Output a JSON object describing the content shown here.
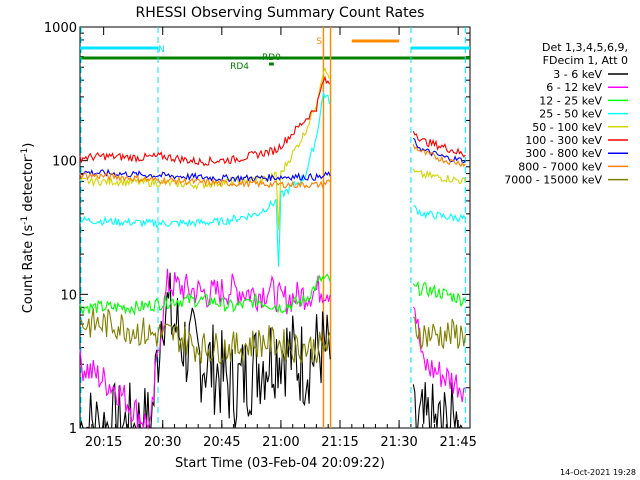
{
  "chart_data": {
    "type": "line",
    "title": "RHESSI Observing Summary Count Rates",
    "xlabel": "Start Time (03-Feb-04 20:09:22)",
    "ylabel": "Count Rate (s⁻¹ detector⁻¹)",
    "ylabel_parts": {
      "a": "Count Rate (s",
      "b": "-1",
      "c": " detector",
      "d": "-1",
      "e": ")"
    },
    "yscale": "log",
    "ylim": [
      1,
      1000
    ],
    "xlim_minutes": [
      20.15,
      21.8
    ],
    "x_ticks": [
      "20:15",
      "20:30",
      "20:45",
      "21:00",
      "21:15",
      "21:30",
      "21:45"
    ],
    "x_tick_minutes": [
      20.25,
      20.5,
      20.75,
      21.0,
      21.25,
      21.5,
      21.75
    ],
    "y_ticks": [
      "1",
      "10",
      "100",
      "1000"
    ],
    "y_tick_values": [
      1,
      10,
      100,
      1000
    ],
    "timestamp": "14-Oct-2021 19:28",
    "legend_header": [
      "Det 1,3,4,5,6,9,",
      "FDecim 1, Att 0"
    ],
    "flags": [
      {
        "label": "N",
        "color": "#00e5ff",
        "segments": [
          [
            20.15,
            20.48
          ],
          [
            21.55,
            21.8
          ]
        ]
      },
      {
        "label": "S",
        "color": "#ff8c00",
        "segments": [
          [
            21.3,
            21.5
          ]
        ]
      },
      {
        "label": "RD0",
        "color": "#008000",
        "segments": [
          [
            20.15,
            21.8
          ]
        ]
      },
      {
        "label": "RD4",
        "color": "#008000",
        "segments": [
          [
            20.95,
            20.97
          ]
        ]
      }
    ],
    "vlines_cyan_dashed": [
      20.48,
      21.55,
      21.78
    ],
    "vlines_orange": [
      21.18,
      21.21
    ],
    "gap": [
      21.21,
      21.56
    ],
    "series": [
      {
        "name": "3 - 6 keV",
        "color": "#000000",
        "points": [
          [
            20.15,
            1
          ],
          [
            20.45,
            1
          ],
          [
            20.5,
            9
          ],
          [
            20.6,
            4
          ],
          [
            20.7,
            3
          ],
          [
            20.8,
            2
          ],
          [
            20.9,
            3
          ],
          [
            21.0,
            4
          ],
          [
            21.1,
            3
          ],
          [
            21.17,
            4
          ],
          [
            21.56,
            1
          ],
          [
            21.78,
            1
          ]
        ]
      },
      {
        "name": "6 - 12 keV",
        "color": "#ff00ff",
        "points": [
          [
            20.15,
            3
          ],
          [
            20.3,
            2
          ],
          [
            20.45,
            1
          ],
          [
            20.48,
            4
          ],
          [
            20.52,
            12
          ],
          [
            20.6,
            11
          ],
          [
            20.7,
            10
          ],
          [
            20.8,
            11
          ],
          [
            20.9,
            10
          ],
          [
            20.95,
            11
          ],
          [
            21.0,
            9
          ],
          [
            21.1,
            10
          ],
          [
            21.17,
            11
          ],
          [
            21.56,
            10
          ],
          [
            21.6,
            3
          ],
          [
            21.78,
            2
          ]
        ]
      },
      {
        "name": "12 - 25 keV",
        "color": "#00ff00",
        "points": [
          [
            20.15,
            8
          ],
          [
            20.4,
            8
          ],
          [
            20.55,
            9
          ],
          [
            20.7,
            9
          ],
          [
            20.8,
            8
          ],
          [
            20.9,
            9
          ],
          [
            21.0,
            8
          ],
          [
            21.1,
            9
          ],
          [
            21.17,
            13
          ],
          [
            21.56,
            11
          ],
          [
            21.6,
            11
          ],
          [
            21.7,
            10
          ],
          [
            21.78,
            9
          ]
        ]
      },
      {
        "name": "25 - 50 keV",
        "color": "#00ffff",
        "points": [
          [
            20.15,
            36
          ],
          [
            20.3,
            35
          ],
          [
            20.45,
            34
          ],
          [
            20.6,
            34
          ],
          [
            20.75,
            35
          ],
          [
            20.9,
            40
          ],
          [
            20.98,
            50
          ],
          [
            20.99,
            15
          ],
          [
            21.0,
            55
          ],
          [
            21.1,
            75
          ],
          [
            21.15,
            150
          ],
          [
            21.18,
            320
          ],
          [
            21.56,
            45
          ],
          [
            21.6,
            40
          ],
          [
            21.7,
            38
          ],
          [
            21.78,
            37
          ]
        ]
      },
      {
        "name": "50 - 100 keV",
        "color": "#d4d400",
        "points": [
          [
            20.15,
            70
          ],
          [
            20.3,
            70
          ],
          [
            20.5,
            68
          ],
          [
            20.65,
            66
          ],
          [
            20.8,
            70
          ],
          [
            20.95,
            74
          ],
          [
            20.98,
            78
          ],
          [
            20.99,
            30
          ],
          [
            21.0,
            80
          ],
          [
            21.1,
            160
          ],
          [
            21.15,
            270
          ],
          [
            21.18,
            480
          ],
          [
            21.56,
            82
          ],
          [
            21.6,
            78
          ],
          [
            21.7,
            74
          ],
          [
            21.78,
            70
          ]
        ]
      },
      {
        "name": "100 - 300 keV",
        "color": "#ff0000",
        "points": [
          [
            20.15,
            105
          ],
          [
            20.25,
            108
          ],
          [
            20.4,
            105
          ],
          [
            20.5,
            108
          ],
          [
            20.65,
            98
          ],
          [
            20.8,
            102
          ],
          [
            20.98,
            120
          ],
          [
            21.0,
            130
          ],
          [
            21.1,
            200
          ],
          [
            21.15,
            250
          ],
          [
            21.18,
            400
          ],
          [
            21.56,
            170
          ],
          [
            21.6,
            140
          ],
          [
            21.7,
            125
          ],
          [
            21.78,
            110
          ]
        ]
      },
      {
        "name": "300 - 800 keV",
        "color": "#0000ff",
        "points": [
          [
            20.15,
            82
          ],
          [
            20.3,
            80
          ],
          [
            20.45,
            78
          ],
          [
            20.6,
            76
          ],
          [
            20.75,
            74
          ],
          [
            20.9,
            74
          ],
          [
            21.05,
            76
          ],
          [
            21.17,
            75
          ],
          [
            21.56,
            140
          ],
          [
            21.6,
            120
          ],
          [
            21.7,
            105
          ],
          [
            21.78,
            100
          ]
        ]
      },
      {
        "name": "800 - 7000 keV",
        "color": "#ff8000",
        "points": [
          [
            20.15,
            78
          ],
          [
            20.3,
            76
          ],
          [
            20.45,
            72
          ],
          [
            20.6,
            70
          ],
          [
            20.75,
            68
          ],
          [
            20.9,
            67
          ],
          [
            21.05,
            66
          ],
          [
            21.17,
            66
          ],
          [
            21.56,
            130
          ],
          [
            21.6,
            115
          ],
          [
            21.7,
            100
          ],
          [
            21.78,
            95
          ]
        ]
      },
      {
        "name": "7000 - 15000 keV",
        "color": "#808000",
        "points": [
          [
            20.15,
            6
          ],
          [
            20.3,
            6
          ],
          [
            20.45,
            5
          ],
          [
            20.55,
            5
          ],
          [
            20.65,
            4
          ],
          [
            20.8,
            4
          ],
          [
            20.95,
            4.5
          ],
          [
            21.05,
            4
          ],
          [
            21.17,
            4
          ],
          [
            21.56,
            6
          ],
          [
            21.6,
            5
          ],
          [
            21.7,
            5
          ],
          [
            21.78,
            5
          ]
        ]
      }
    ]
  }
}
